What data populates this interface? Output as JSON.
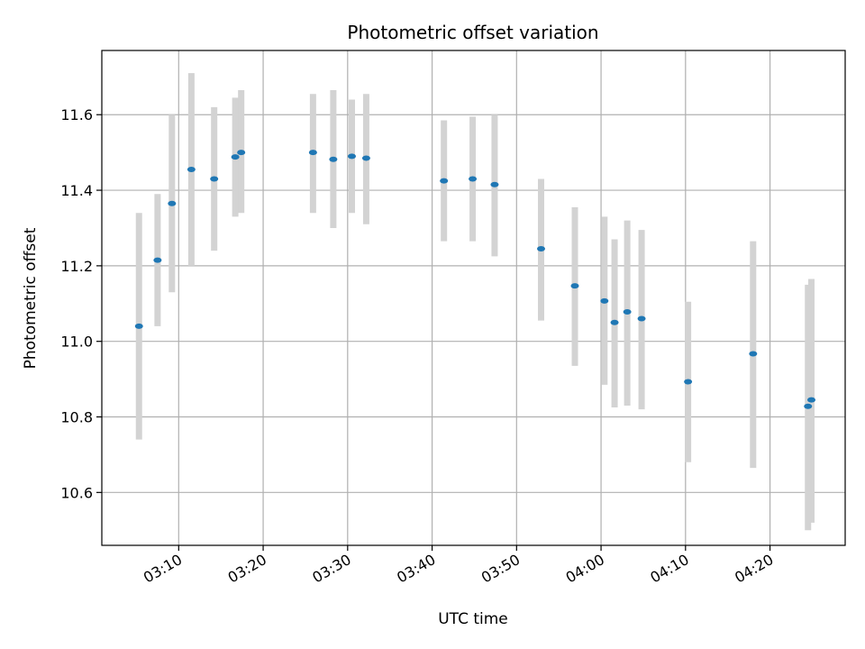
{
  "chart_data": {
    "type": "scatter",
    "title": "Photometric offset variation",
    "xlabel": "UTC time",
    "ylabel": "Photometric offset",
    "x_tick_labels": [
      "03:10",
      "03:20",
      "03:30",
      "03:40",
      "03:50",
      "04:00",
      "04:10",
      "04:20"
    ],
    "y_tick_labels": [
      "10.6",
      "10.8",
      "11.0",
      "11.2",
      "11.4",
      "11.6"
    ],
    "xlim": [
      "03:00:54",
      "04:28:54"
    ],
    "ylim": [
      10.46,
      11.77
    ],
    "grid": true,
    "colors": {
      "points": "#1f77b4",
      "error_bars": "#d3d3d3",
      "grid": "#b0b0b0"
    },
    "series": [
      {
        "points": [
          {
            "x": "03:05:18",
            "y": 11.04,
            "y_low": 10.74,
            "y_high": 11.34
          },
          {
            "x": "03:07:30",
            "y": 11.215,
            "y_low": 11.04,
            "y_high": 11.39
          },
          {
            "x": "03:09:12",
            "y": 11.365,
            "y_low": 11.13,
            "y_high": 11.6
          },
          {
            "x": "03:11:30",
            "y": 11.455,
            "y_low": 11.2,
            "y_high": 11.71
          },
          {
            "x": "03:14:12",
            "y": 11.43,
            "y_low": 11.24,
            "y_high": 11.62
          },
          {
            "x": "03:16:42",
            "y": 11.488,
            "y_low": 11.33,
            "y_high": 11.645
          },
          {
            "x": "03:17:24",
            "y": 11.5,
            "y_low": 11.34,
            "y_high": 11.665
          },
          {
            "x": "03:25:54",
            "y": 11.5,
            "y_low": 11.34,
            "y_high": 11.655
          },
          {
            "x": "03:28:18",
            "y": 11.482,
            "y_low": 11.3,
            "y_high": 11.665
          },
          {
            "x": "03:30:30",
            "y": 11.49,
            "y_low": 11.34,
            "y_high": 11.64
          },
          {
            "x": "03:32:12",
            "y": 11.485,
            "y_low": 11.31,
            "y_high": 11.655
          },
          {
            "x": "03:41:24",
            "y": 11.425,
            "y_low": 11.265,
            "y_high": 11.585
          },
          {
            "x": "03:44:48",
            "y": 11.43,
            "y_low": 11.265,
            "y_high": 11.595
          },
          {
            "x": "03:47:24",
            "y": 11.415,
            "y_low": 11.225,
            "y_high": 11.6
          },
          {
            "x": "03:52:54",
            "y": 11.245,
            "y_low": 11.055,
            "y_high": 11.43
          },
          {
            "x": "03:56:54",
            "y": 11.147,
            "y_low": 10.935,
            "y_high": 11.355
          },
          {
            "x": "04:00:24",
            "y": 11.107,
            "y_low": 10.885,
            "y_high": 11.33
          },
          {
            "x": "04:01:36",
            "y": 11.05,
            "y_low": 10.825,
            "y_high": 11.27
          },
          {
            "x": "04:03:06",
            "y": 11.078,
            "y_low": 10.83,
            "y_high": 11.32
          },
          {
            "x": "04:04:48",
            "y": 11.06,
            "y_low": 10.82,
            "y_high": 11.295
          },
          {
            "x": "04:10:18",
            "y": 10.893,
            "y_low": 10.68,
            "y_high": 11.105
          },
          {
            "x": "04:18:00",
            "y": 10.967,
            "y_low": 10.665,
            "y_high": 11.265
          },
          {
            "x": "04:24:30",
            "y": 10.828,
            "y_low": 10.5,
            "y_high": 11.15
          },
          {
            "x": "04:24:54",
            "y": 10.845,
            "y_low": 10.52,
            "y_high": 11.165
          }
        ]
      }
    ]
  }
}
